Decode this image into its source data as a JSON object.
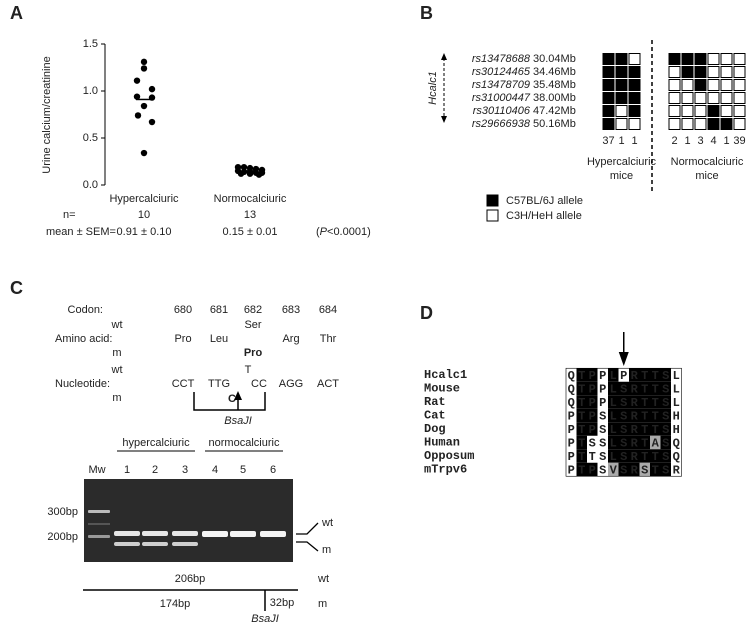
{
  "chart_data": {
    "type": "scatter",
    "panel_label": "A",
    "ylabel": "Urine calcium/creatinine",
    "categories": [
      "Hypercalciuric",
      "Normocalciuric"
    ],
    "values": [
      [
        1.31,
        1.24,
        1.11,
        1.02,
        0.94,
        0.93,
        0.84,
        0.74,
        0.67,
        0.34
      ],
      [
        0.19,
        0.19,
        0.18,
        0.17,
        0.16,
        0.15,
        0.14,
        0.14,
        0.13,
        0.13,
        0.12,
        0.12,
        0.11
      ]
    ],
    "means": [
      0.91,
      0.15
    ],
    "color": "#000000",
    "ylim": [
      0,
      1.5
    ],
    "yticks": [
      {
        "value": 0,
        "label": "0.0"
      },
      {
        "value": 0.5,
        "label": "0.5"
      },
      {
        "value": 1,
        "label": "1.0"
      },
      {
        "value": 1.5,
        "label": "1.5"
      }
    ],
    "stats": {
      "n_label": "n=",
      "n": [
        10,
        13
      ],
      "mean_label": "mean ± SEM=",
      "mean_sem": [
        "0.91 ± 0.10",
        "0.15 ± 0.01"
      ],
      "p_value": [
        "(",
        "P",
        "<0.0001)"
      ]
    }
  },
  "panel_b": {
    "label": "B",
    "gene": "Hcalc1",
    "snps": [
      {
        "name": "rs13478688",
        "position": "30.04Mb"
      },
      {
        "name": "rs30124465",
        "position": "34.46Mb"
      },
      {
        "name": "rs13478709",
        "position": "35.48Mb"
      },
      {
        "name": "rs31000447",
        "position": "38.00Mb"
      },
      {
        "name": "rs30110406",
        "position": "47.42Mb"
      },
      {
        "name": "rs29666938",
        "position": "50.16Mb"
      }
    ],
    "groups": [
      {
        "name": [
          "Hypercalciuric",
          "mice"
        ],
        "genotypes": [
          [
            1,
            1,
            0
          ],
          [
            1,
            1,
            1
          ],
          [
            1,
            1,
            1
          ],
          [
            1,
            1,
            1
          ],
          [
            1,
            0,
            1
          ],
          [
            1,
            0,
            0
          ]
        ],
        "counts": [
          37,
          1,
          1
        ]
      },
      {
        "name": [
          "Normocalciuric",
          "mice"
        ],
        "genotypes": [
          [
            1,
            1,
            1,
            0,
            0,
            0
          ],
          [
            0,
            1,
            1,
            0,
            0,
            0
          ],
          [
            0,
            0,
            1,
            0,
            0,
            0
          ],
          [
            0,
            0,
            0,
            0,
            0,
            0
          ],
          [
            0,
            0,
            0,
            1,
            0,
            0
          ],
          [
            0,
            0,
            0,
            1,
            1,
            0
          ]
        ],
        "counts": [
          2,
          1,
          3,
          4,
          1,
          39
        ]
      }
    ],
    "legend": [
      {
        "label": "C57BL/6J allele",
        "color": "#000000"
      },
      {
        "label": "C3H/HeH allele",
        "color": "#ffffff"
      }
    ]
  },
  "panel_c": {
    "label": "C",
    "codon": {
      "label": "Codon:",
      "numbers": [
        680,
        681,
        682,
        683,
        684
      ]
    },
    "amino_acid": {
      "label": "Amino acid:",
      "wt": "wt",
      "m": "m",
      "cells": [
        {
          "text": "Pro"
        },
        {
          "text": "Leu"
        },
        {
          "wt": "Ser",
          "m": "Pro"
        },
        {
          "text": "Arg"
        },
        {
          "text": "Thr"
        }
      ]
    },
    "nucleotide": {
      "label": "Nucleotide:",
      "wt": "wt",
      "m": "m",
      "cells": [
        {
          "text": "CCT"
        },
        {
          "text": "TTG"
        },
        {
          "wt": "T",
          "shared": "CC",
          "m": "C"
        },
        {
          "text": "AGG"
        },
        {
          "text": "ACT"
        }
      ]
    },
    "enzyme": "BsaJI",
    "gel": {
      "marker": "Mw",
      "groups": [
        {
          "name": "hypercalciuric",
          "lanes": [
            1,
            2,
            3
          ]
        },
        {
          "name": "normocalciuric",
          "lanes": [
            4,
            5,
            6
          ]
        }
      ],
      "sizes": [
        "300bp",
        "200bp"
      ],
      "bands": [
        "wt",
        "m"
      ]
    },
    "map": {
      "wt_length": "206bp",
      "wt": "wt",
      "m_fragments": [
        "174bp",
        "32bp"
      ],
      "m": "m",
      "enzyme": "BsaJI"
    }
  },
  "panel_d": {
    "label": "D",
    "rows": [
      {
        "species": "Hcalc1",
        "sequence": "QTPPLPRTTSL",
        "shading": "wbbwbwbbbbw"
      },
      {
        "species": "Mouse",
        "sequence": "QTPPLSRTTSL",
        "shading": "wbbwbbbbbbw"
      },
      {
        "species": "Rat",
        "sequence": "QTPPLSRTTSL",
        "shading": "wbbwbbbbbbw"
      },
      {
        "species": "Cat",
        "sequence": "PTPSLSRTTSH",
        "shading": "wbbwbbbbbbw"
      },
      {
        "species": "Dog",
        "sequence": "PTPSLSRTTSH",
        "shading": "wbbwbbbbbbw"
      },
      {
        "species": "Human",
        "sequence": "PTSSLSRTASQ",
        "shading": "wbwwbbbbgbw"
      },
      {
        "species": "Opposum",
        "sequence": "PTTSLSRTTSQ",
        "shading": "wbwwbbbbbbw"
      },
      {
        "species": "mTrpv6",
        "sequence": "PTPSVSRSTSR",
        "shading": "wbbwgbbgbbw"
      }
    ]
  }
}
